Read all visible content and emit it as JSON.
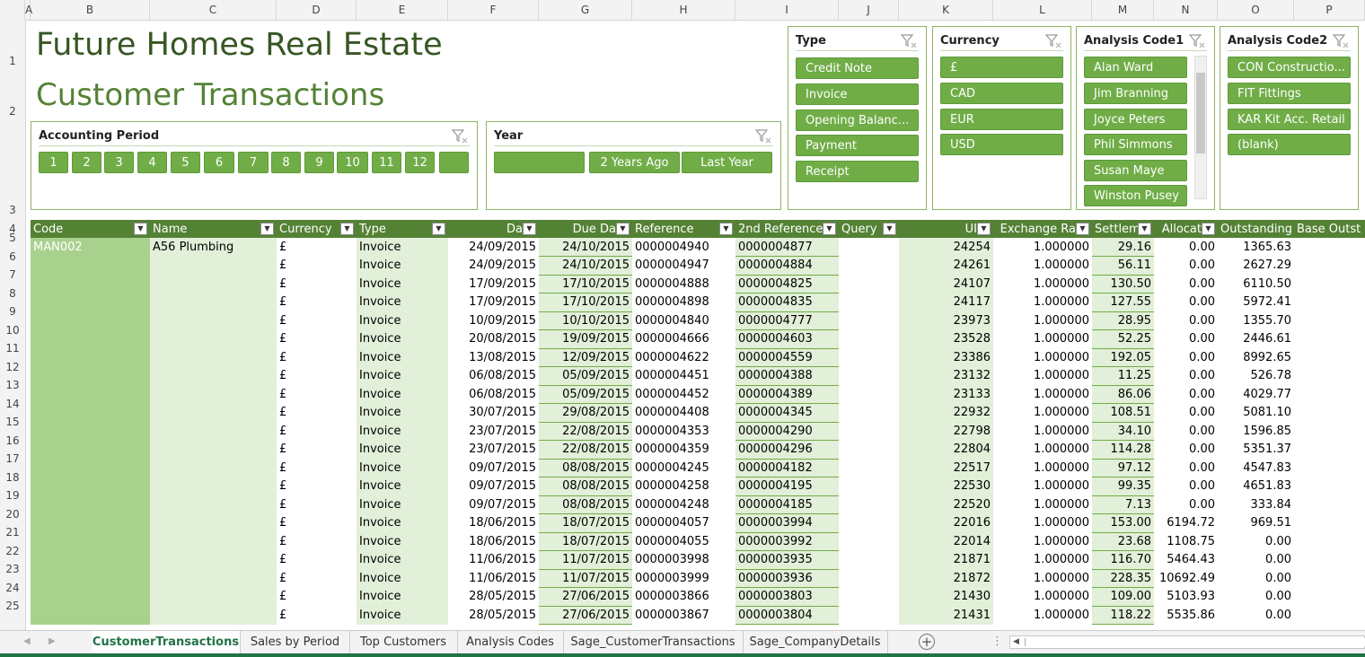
{
  "column_letters": [
    "A",
    "B",
    "C",
    "D",
    "E",
    "F",
    "G",
    "H",
    "I",
    "J",
    "K",
    "L",
    "M",
    "N",
    "O",
    "P"
  ],
  "row_numbers": [
    "1",
    "2",
    "3",
    "4",
    "5",
    "6",
    "7",
    "8",
    "9",
    "10",
    "11",
    "12",
    "13",
    "14",
    "15",
    "16",
    "17",
    "18",
    "19",
    "20",
    "21",
    "22",
    "23",
    "24",
    "25"
  ],
  "title": "Future Homes Real Estate",
  "subtitle": "Customer Transactions",
  "slicers": {
    "accounting_period": {
      "title": "Accounting Period",
      "items": [
        "1",
        "2",
        "3",
        "4",
        "5",
        "6",
        "7",
        "8",
        "9",
        "10",
        "11",
        "12",
        ""
      ]
    },
    "year": {
      "title": "Year",
      "items": [
        "",
        "2 Years Ago",
        "Last Year"
      ]
    },
    "type": {
      "title": "Type",
      "items": [
        "Credit Note",
        "Invoice",
        "Opening Balanc...",
        "Payment",
        "Receipt"
      ]
    },
    "currency": {
      "title": "Currency",
      "items": [
        "£",
        "CAD",
        "EUR",
        "USD"
      ]
    },
    "analysis_code1": {
      "title": "Analysis Code1",
      "items": [
        "Alan Ward",
        "Jim Branning",
        "Joyce Peters",
        "Phil Simmons",
        "Susan Maye",
        "Winston Pusey"
      ]
    },
    "analysis_code2": {
      "title": "Analysis Code2",
      "items": [
        "CON Constructio...",
        "FIT Fittings",
        "KAR Kit Acc. Retail",
        "(blank)"
      ]
    }
  },
  "table": {
    "headers": [
      "Code",
      "Name",
      "Currency",
      "Type",
      "Da",
      "Due Da",
      "Reference",
      "2nd Reference",
      "Query",
      "UI",
      "Exchange Ra",
      "Settlem",
      "Allocat",
      "Outstanding",
      "Base Outst"
    ],
    "first_code": "MAN002",
    "first_name": "A56 Plumbing",
    "rows": [
      [
        "£",
        "Invoice",
        "24/09/2015",
        "24/10/2015",
        "0000004940",
        "0000004877",
        "",
        "24254",
        "1.000000",
        "29.16",
        "0.00",
        "1365.63"
      ],
      [
        "£",
        "Invoice",
        "24/09/2015",
        "24/10/2015",
        "0000004947",
        "0000004884",
        "",
        "24261",
        "1.000000",
        "56.11",
        "0.00",
        "2627.29"
      ],
      [
        "£",
        "Invoice",
        "17/09/2015",
        "17/10/2015",
        "0000004888",
        "0000004825",
        "",
        "24107",
        "1.000000",
        "130.50",
        "0.00",
        "6110.50"
      ],
      [
        "£",
        "Invoice",
        "17/09/2015",
        "17/10/2015",
        "0000004898",
        "0000004835",
        "",
        "24117",
        "1.000000",
        "127.55",
        "0.00",
        "5972.41"
      ],
      [
        "£",
        "Invoice",
        "10/09/2015",
        "10/10/2015",
        "0000004840",
        "0000004777",
        "",
        "23973",
        "1.000000",
        "28.95",
        "0.00",
        "1355.70"
      ],
      [
        "£",
        "Invoice",
        "20/08/2015",
        "19/09/2015",
        "0000004666",
        "0000004603",
        "",
        "23528",
        "1.000000",
        "52.25",
        "0.00",
        "2446.61"
      ],
      [
        "£",
        "Invoice",
        "13/08/2015",
        "12/09/2015",
        "0000004622",
        "0000004559",
        "",
        "23386",
        "1.000000",
        "192.05",
        "0.00",
        "8992.65"
      ],
      [
        "£",
        "Invoice",
        "06/08/2015",
        "05/09/2015",
        "0000004451",
        "0000004388",
        "",
        "23132",
        "1.000000",
        "11.25",
        "0.00",
        "526.78"
      ],
      [
        "£",
        "Invoice",
        "06/08/2015",
        "05/09/2015",
        "0000004452",
        "0000004389",
        "",
        "23133",
        "1.000000",
        "86.06",
        "0.00",
        "4029.77"
      ],
      [
        "£",
        "Invoice",
        "30/07/2015",
        "29/08/2015",
        "0000004408",
        "0000004345",
        "",
        "22932",
        "1.000000",
        "108.51",
        "0.00",
        "5081.10"
      ],
      [
        "£",
        "Invoice",
        "23/07/2015",
        "22/08/2015",
        "0000004353",
        "0000004290",
        "",
        "22798",
        "1.000000",
        "34.10",
        "0.00",
        "1596.85"
      ],
      [
        "£",
        "Invoice",
        "23/07/2015",
        "22/08/2015",
        "0000004359",
        "0000004296",
        "",
        "22804",
        "1.000000",
        "114.28",
        "0.00",
        "5351.37"
      ],
      [
        "£",
        "Invoice",
        "09/07/2015",
        "08/08/2015",
        "0000004245",
        "0000004182",
        "",
        "22517",
        "1.000000",
        "97.12",
        "0.00",
        "4547.83"
      ],
      [
        "£",
        "Invoice",
        "09/07/2015",
        "08/08/2015",
        "0000004258",
        "0000004195",
        "",
        "22530",
        "1.000000",
        "99.35",
        "0.00",
        "4651.83"
      ],
      [
        "£",
        "Invoice",
        "09/07/2015",
        "08/08/2015",
        "0000004248",
        "0000004185",
        "",
        "22520",
        "1.000000",
        "7.13",
        "0.00",
        "333.84"
      ],
      [
        "£",
        "Invoice",
        "18/06/2015",
        "18/07/2015",
        "0000004057",
        "0000003994",
        "",
        "22016",
        "1.000000",
        "153.00",
        "6194.72",
        "969.51"
      ],
      [
        "£",
        "Invoice",
        "18/06/2015",
        "18/07/2015",
        "0000004055",
        "0000003992",
        "",
        "22014",
        "1.000000",
        "23.68",
        "1108.75",
        "0.00"
      ],
      [
        "£",
        "Invoice",
        "11/06/2015",
        "11/07/2015",
        "0000003998",
        "0000003935",
        "",
        "21871",
        "1.000000",
        "116.70",
        "5464.43",
        "0.00"
      ],
      [
        "£",
        "Invoice",
        "11/06/2015",
        "11/07/2015",
        "0000003999",
        "0000003936",
        "",
        "21872",
        "1.000000",
        "228.35",
        "10692.49",
        "0.00"
      ],
      [
        "£",
        "Invoice",
        "28/05/2015",
        "27/06/2015",
        "0000003866",
        "0000003803",
        "",
        "21430",
        "1.000000",
        "109.00",
        "5103.93",
        "0.00"
      ],
      [
        "£",
        "Invoice",
        "28/05/2015",
        "27/06/2015",
        "0000003867",
        "0000003804",
        "",
        "21431",
        "1.000000",
        "118.22",
        "5535.86",
        "0.00"
      ]
    ]
  },
  "sheet_tabs": [
    "CustomerTransactions",
    "Sales by Period",
    "Top Customers",
    "Analysis Codes",
    "Sage_CustomerTransactions",
    "Sage_CompanyDetails"
  ],
  "active_tab": "CustomerTransactions",
  "icons": {
    "filter_clear": "filter-clear-icon",
    "add_sheet": "plus-circle-icon",
    "nav_prev": "triangle-left-icon",
    "nav_next": "triangle-right-icon"
  },
  "colors": {
    "header_green": "#548235",
    "slicer_button": "#70ad47",
    "title": "#375623",
    "band_light": "#e2efd9",
    "band_mid": "#a9d18e"
  }
}
